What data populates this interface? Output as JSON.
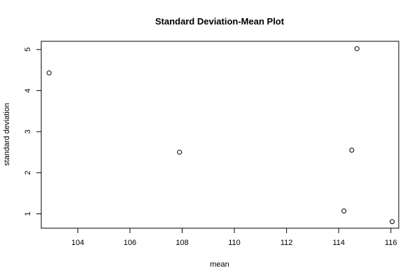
{
  "chart_data": {
    "type": "scatter",
    "title": "Standard Deviation-Mean Plot",
    "xlabel": "mean",
    "ylabel": "standard deviation",
    "xlim": [
      102.6,
      116.3
    ],
    "ylim": [
      0.65,
      5.2
    ],
    "x_ticks": [
      104,
      106,
      108,
      110,
      112,
      114,
      116
    ],
    "y_ticks": [
      1,
      2,
      3,
      4,
      5
    ],
    "points": [
      {
        "x": 102.9,
        "y": 4.43
      },
      {
        "x": 107.9,
        "y": 2.5
      },
      {
        "x": 114.2,
        "y": 1.07
      },
      {
        "x": 114.5,
        "y": 2.55
      },
      {
        "x": 114.7,
        "y": 5.02
      },
      {
        "x": 116.05,
        "y": 0.81
      }
    ],
    "grid": false,
    "legend": "none"
  }
}
